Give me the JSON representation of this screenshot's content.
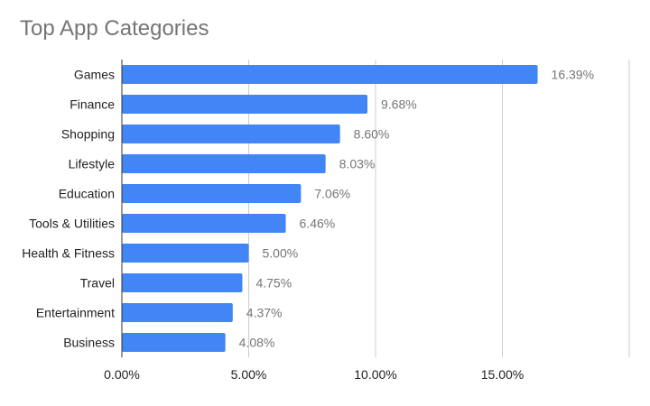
{
  "chart_data": {
    "type": "bar",
    "orientation": "horizontal",
    "title": "Top App Categories",
    "categories": [
      "Games",
      "Finance",
      "Shopping",
      "Lifestyle",
      "Education",
      "Tools & Utilities",
      "Health & Fitness",
      "Travel",
      "Entertainment",
      "Business"
    ],
    "values": [
      16.39,
      9.68,
      8.6,
      8.03,
      7.06,
      6.46,
      5.0,
      4.75,
      4.37,
      4.08
    ],
    "data_labels": [
      "16.39%",
      "9.68%",
      "8.60%",
      "8.03%",
      "7.06%",
      "6.46%",
      "5.00%",
      "4.75%",
      "4.37%",
      "4.08%"
    ],
    "x_ticks": [
      0,
      5,
      10,
      15,
      20
    ],
    "x_tick_labels": [
      "0.00%",
      "5.00%",
      "10.00%",
      "15.00%",
      ""
    ],
    "xlim": [
      0,
      20
    ],
    "xlabel": "",
    "ylabel": "",
    "grid": true,
    "bar_color": "#4285f4",
    "grid_color": "#cccccc",
    "axis_color": "#333333"
  }
}
